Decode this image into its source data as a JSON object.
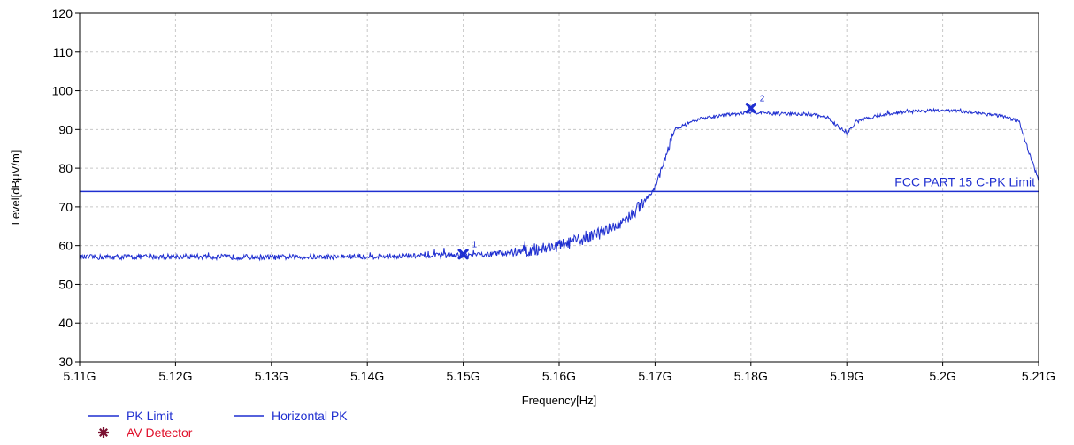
{
  "chart_data": {
    "type": "line",
    "xlabel": "Frequency[Hz]",
    "ylabel": "Level[dBµV/m]",
    "xlim": [
      5.11,
      5.21
    ],
    "ylim": [
      30,
      120
    ],
    "x_ticks": [
      5.11,
      5.12,
      5.13,
      5.14,
      5.15,
      5.16,
      5.17,
      5.18,
      5.19,
      5.2,
      5.21
    ],
    "x_tick_labels": [
      "5.11G",
      "5.12G",
      "5.13G",
      "5.14G",
      "5.15G",
      "5.16G",
      "5.17G",
      "5.18G",
      "5.19G",
      "5.2G",
      "5.21G"
    ],
    "y_ticks": [
      30,
      40,
      50,
      60,
      70,
      80,
      90,
      100,
      110,
      120
    ],
    "y_tick_labels": [
      "30",
      "40",
      "50",
      "60",
      "70",
      "80",
      "90",
      "100",
      "110",
      "120"
    ],
    "grid": true,
    "series": [
      {
        "name": "PK Limit",
        "color": "#1f2fd0",
        "x": [
          5.11,
          5.21
        ],
        "y": [
          74,
          74
        ]
      },
      {
        "name": "Horizontal PK",
        "color": "#1f2fd0",
        "x": [
          5.11,
          5.12,
          5.13,
          5.14,
          5.15,
          5.153,
          5.156,
          5.16,
          5.163,
          5.166,
          5.168,
          5.17,
          5.171,
          5.172,
          5.175,
          5.18,
          5.183,
          5.186,
          5.188,
          5.19,
          5.191,
          5.193,
          5.196,
          5.2,
          5.203,
          5.206,
          5.208,
          5.209,
          5.21
        ],
        "y": [
          57,
          57.2,
          57,
          57.2,
          57.5,
          57.8,
          58.5,
          60,
          62,
          65,
          69,
          75,
          82,
          90,
          93,
          94.5,
          94,
          94,
          93,
          89,
          92,
          93.5,
          94.5,
          95,
          94.5,
          93.5,
          92,
          84,
          77
        ]
      }
    ],
    "markers": [
      {
        "label": "1",
        "x": 5.15,
        "y": 57.8
      },
      {
        "label": "2",
        "x": 5.18,
        "y": 95.5
      }
    ],
    "annotations": [
      {
        "text": "FCC PART 15 C-PK Limit"
      }
    ],
    "legend": {
      "placement": "bottom-left",
      "entries": [
        {
          "label": "PK Limit",
          "color": "#1f2fd0",
          "symbol": "line"
        },
        {
          "label": "Horizontal PK",
          "color": "#1f2fd0",
          "symbol": "line"
        },
        {
          "label": "AV Detector",
          "color": "#e0102a",
          "symbol_color": "#7a1030",
          "symbol": "star"
        }
      ]
    }
  }
}
